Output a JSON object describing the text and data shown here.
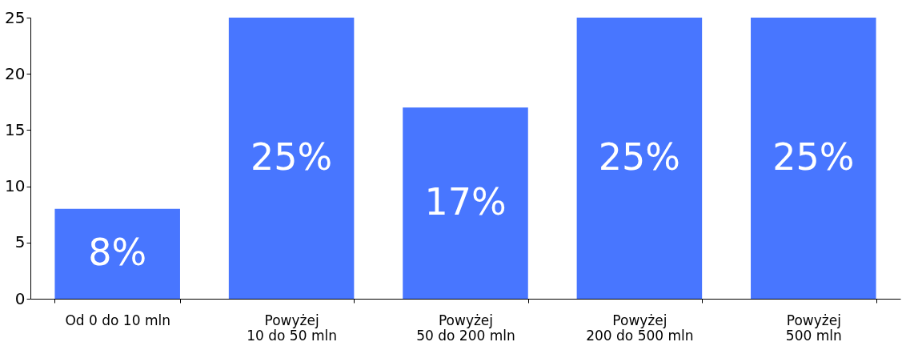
{
  "chart_data": {
    "type": "bar",
    "categories": [
      "Od 0 do 10 mln",
      "Powyżej\n10 do 50 mln",
      "Powyżej\n50 do 200 mln",
      "Powyżej\n200 do 500 mln",
      "Powyżej\n500 mln"
    ],
    "values": [
      8,
      25,
      17,
      25,
      25
    ],
    "value_labels": [
      "8%",
      "25%",
      "17%",
      "25%",
      "25%"
    ],
    "color": "#4876ff",
    "ylim": [
      0,
      25
    ],
    "yticks": [
      0,
      5,
      10,
      15,
      20,
      25
    ],
    "grid": false
  }
}
